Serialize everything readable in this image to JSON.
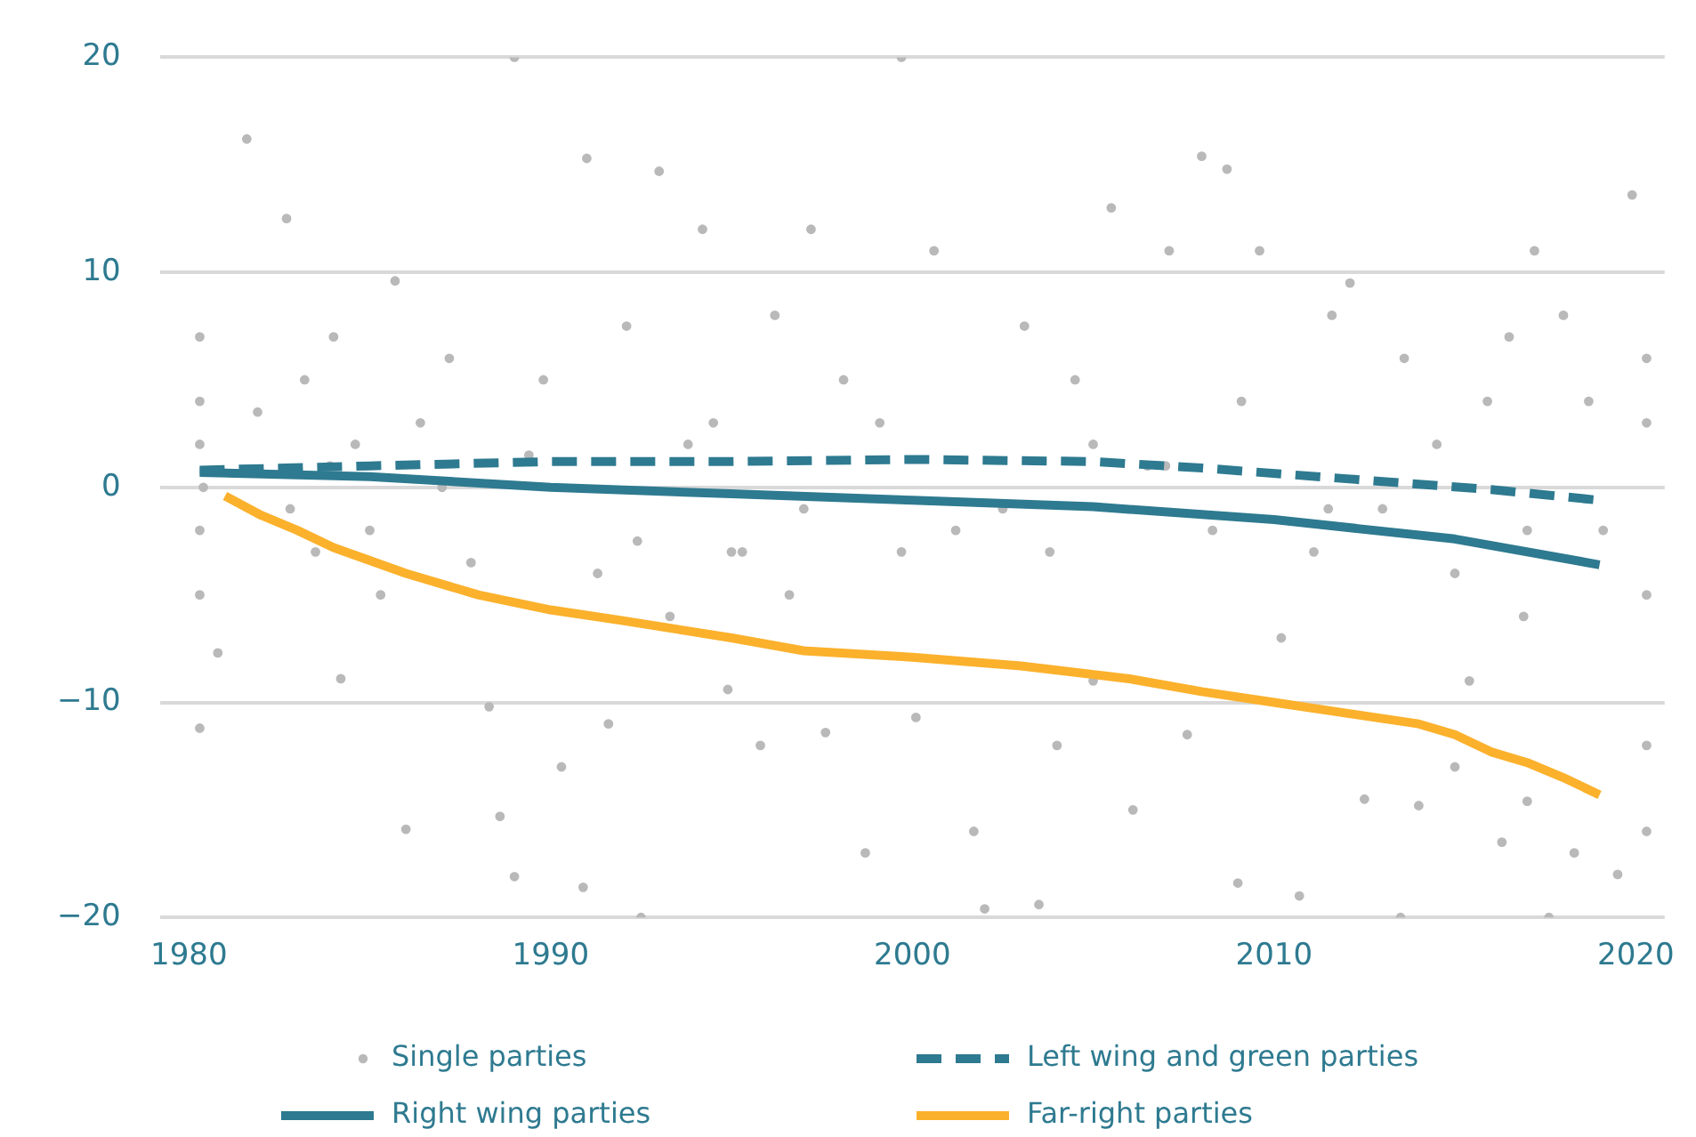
{
  "chart_data": {
    "type": "scatter",
    "xlim": [
      1979.2,
      2020.8
    ],
    "xticks": [
      1980,
      1990,
      2000,
      2010,
      2020
    ],
    "ylim": [
      -20,
      20
    ],
    "yticks": [
      -20,
      -10,
      0,
      10,
      20
    ],
    "grid": "y",
    "legend": "bottom",
    "series": [
      {
        "name": "Single parties",
        "marker": "circle",
        "color": "#b9b9b9",
        "x": [
          1980.3,
          1980.3,
          1980.3,
          1980.3,
          1980.3,
          1980.3,
          1980.4,
          1980.8,
          1981.6,
          1981.9,
          1982.7,
          1982.8,
          1983.2,
          1983.5,
          1984,
          1984.2,
          1984.6,
          1985.3,
          1985.7,
          1986,
          1986.4,
          1987.2,
          1987.8,
          1988.3,
          1988.6,
          1989,
          1989,
          1989.4,
          1989.8,
          1990.3,
          1990.9,
          1991,
          1991.3,
          1991.6,
          1992.1,
          1992.4,
          1992.5,
          1993,
          1993.3,
          1993.8,
          1994.2,
          1994.9,
          1995.3,
          1995.8,
          1996.2,
          1996.6,
          1997.2,
          1997.6,
          1998.1,
          1998.7,
          1999.1,
          1999.7,
          1999.7,
          2000.1,
          2000.6,
          2001.2,
          2001.7,
          2002,
          2002.5,
          2003.1,
          2003.5,
          2004,
          2004.5,
          2005,
          2005.5,
          2006.1,
          2006.5,
          2007.1,
          2007.6,
          2008,
          2008.3,
          2008.7,
          2009,
          2009.1,
          2009.6,
          2010.2,
          2010.7,
          2011.1,
          2011.6,
          2012.1,
          2012.5,
          2013,
          2013.5,
          2013.6,
          2014,
          2014.5,
          2015,
          2015.4,
          2015.9,
          2016.3,
          2016.5,
          2016.9,
          2017,
          2017.2,
          2017.6,
          2018,
          2018.3,
          2018.7,
          2019.1,
          2019.5,
          2019.9,
          2020.3,
          2020.3,
          2020.3,
          2020.3,
          2020.3,
          1985,
          1995,
          2005,
          2015,
          1987,
          1997,
          2007,
          2017,
          2011.5,
          2003.8,
          1994.5,
          1983.9
        ],
        "values": [
          7,
          4,
          2,
          -2,
          -5,
          -11.2,
          0,
          -7.7,
          16.2,
          3.5,
          12.5,
          -1,
          5,
          -3,
          7,
          -8.9,
          2,
          -5,
          9.6,
          -15.9,
          3,
          6,
          -3.5,
          -10.2,
          -15.3,
          20,
          -18.1,
          1.5,
          5,
          -13,
          -18.6,
          15.3,
          -4,
          -11,
          7.5,
          -2.5,
          -20,
          14.7,
          -6,
          2,
          12,
          -9.4,
          -3,
          -12,
          8,
          -5,
          12,
          -11.4,
          5,
          -17,
          3,
          20,
          -3,
          -10.7,
          11,
          -2,
          -16,
          -19.6,
          -1,
          7.5,
          -19.4,
          -12,
          5,
          -9,
          13,
          -15,
          1,
          11,
          -11.5,
          15.4,
          -2,
          14.8,
          -18.4,
          4,
          11,
          -7,
          -19,
          -3,
          8,
          9.5,
          -14.5,
          -1,
          -20,
          6,
          -14.8,
          2,
          -13,
          -9,
          4,
          -16.5,
          7,
          -6,
          -14.6,
          11,
          -20,
          8,
          -17,
          4,
          -2,
          -18,
          13.6,
          -5,
          -12,
          -16,
          3,
          6,
          -2,
          -3,
          2,
          -4,
          0,
          -1,
          1,
          -2,
          -1,
          -3,
          3,
          1
        ]
      },
      {
        "name": "Left wing and green parties",
        "type": "line",
        "line_style": "dashed",
        "color": "#2e7a90",
        "x": [
          1980.3,
          1985,
          1990,
          1995,
          2000,
          2005,
          2008,
          2012,
          2016,
          2019
        ],
        "values": [
          0.8,
          1.0,
          1.2,
          1.2,
          1.3,
          1.2,
          0.9,
          0.4,
          -0.1,
          -0.6
        ]
      },
      {
        "name": "Right wing parties",
        "type": "line",
        "line_style": "solid",
        "color": "#2e7a90",
        "x": [
          1980.3,
          1985,
          1990,
          1995,
          2000,
          2005,
          2010,
          2015,
          2019
        ],
        "values": [
          0.7,
          0.5,
          0.0,
          -0.3,
          -0.6,
          -0.9,
          -1.5,
          -2.4,
          -3.6
        ]
      },
      {
        "name": "Far-right parties",
        "type": "line",
        "line_style": "solid",
        "color": "#fbb12c",
        "x": [
          1981,
          1982,
          1983,
          1984,
          1986,
          1988,
          1990,
          1992,
          1995,
          1997,
          2000,
          2003,
          2006,
          2008,
          2010,
          2012,
          2014,
          2015,
          2016,
          2017,
          2018,
          2019
        ],
        "values": [
          -0.4,
          -1.3,
          -2.0,
          -2.8,
          -4.0,
          -5.0,
          -5.7,
          -6.2,
          -7.0,
          -7.6,
          -7.9,
          -8.3,
          -8.9,
          -9.5,
          -10.0,
          -10.5,
          -11.0,
          -11.5,
          -12.3,
          -12.8,
          -13.5,
          -14.3
        ]
      }
    ]
  }
}
